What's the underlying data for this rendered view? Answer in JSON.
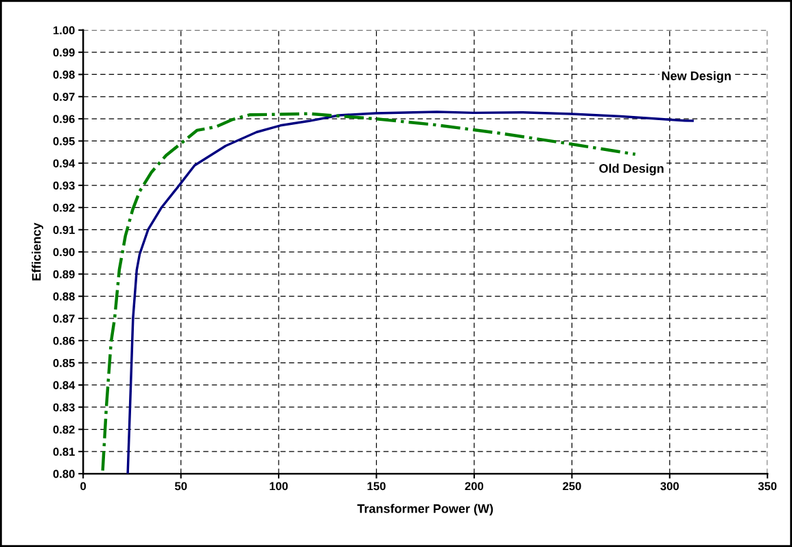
{
  "chart_data": {
    "type": "line",
    "xlabel": "Transformer Power (W)",
    "ylabel": "Efficiency",
    "xlim": [
      0,
      350
    ],
    "xticks": [
      0,
      50,
      100,
      150,
      200,
      250,
      300,
      350
    ],
    "ylim": [
      0.8,
      1.0
    ],
    "yticks": [
      {
        "value": 0.8,
        "label": "0.80"
      },
      {
        "value": 0.81,
        "label": "0.81"
      },
      {
        "value": 0.82,
        "label": "0.82"
      },
      {
        "value": 0.83,
        "label": "0.83"
      },
      {
        "value": 0.84,
        "label": "0.84"
      },
      {
        "value": 0.85,
        "label": "0.85"
      },
      {
        "value": 0.86,
        "label": "0.86"
      },
      {
        "value": 0.87,
        "label": "0.87"
      },
      {
        "value": 0.88,
        "label": "0.88"
      },
      {
        "value": 0.89,
        "label": "0.89"
      },
      {
        "value": 0.9,
        "label": "0.90"
      },
      {
        "value": 0.91,
        "label": "0.91"
      },
      {
        "value": 0.92,
        "label": "0.92"
      },
      {
        "value": 0.93,
        "label": "0.93"
      },
      {
        "value": 0.94,
        "label": "0.94"
      },
      {
        "value": 0.95,
        "label": "0.95"
      },
      {
        "value": 0.96,
        "label": "0.96"
      },
      {
        "value": 0.97,
        "label": "0.97"
      },
      {
        "value": 0.98,
        "label": "0.98"
      },
      {
        "value": 0.99,
        "label": "0.99"
      },
      {
        "value": 1.0,
        "label": "1.00"
      }
    ],
    "grid": true,
    "marker": "none",
    "series": [
      {
        "name": "New Design",
        "color": "#000080",
        "line_style": "solid",
        "x": [
          22.8,
          24.0,
          25.5,
          27.4,
          28.9,
          33.2,
          39.9,
          49.1,
          57.0,
          72.9,
          88.7,
          100.9,
          115.5,
          130.8,
          149.5,
          180.9,
          199.7,
          224.8,
          249.8,
          275.0,
          307.5,
          311.7
        ],
        "values": [
          0.8,
          0.8305,
          0.87,
          0.8918,
          0.899,
          0.91,
          0.9198,
          0.93,
          0.939,
          0.9478,
          0.954,
          0.957,
          0.959,
          0.9616,
          0.9625,
          0.9631,
          0.9627,
          0.9629,
          0.9622,
          0.9611,
          0.9592,
          0.9591
        ]
      },
      {
        "name": "Old Design",
        "color": "#008000",
        "line_style": "dashdot",
        "x": [
          10.0,
          11.9,
          14.3,
          16.1,
          18.5,
          21.6,
          25.3,
          28.9,
          35.0,
          42.4,
          50.9,
          58.2,
          68.0,
          76.5,
          85.1,
          99.7,
          115.5,
          149.5,
          180.9,
          212.2,
          249.8,
          282.4
        ],
        "values": [
          0.8014,
          0.8305,
          0.8595,
          0.87,
          0.892,
          0.9072,
          0.919,
          0.9273,
          0.936,
          0.9435,
          0.9495,
          0.9548,
          0.9564,
          0.9597,
          0.9618,
          0.962,
          0.9623,
          0.96,
          0.9572,
          0.9536,
          0.9486,
          0.944
        ]
      }
    ]
  }
}
